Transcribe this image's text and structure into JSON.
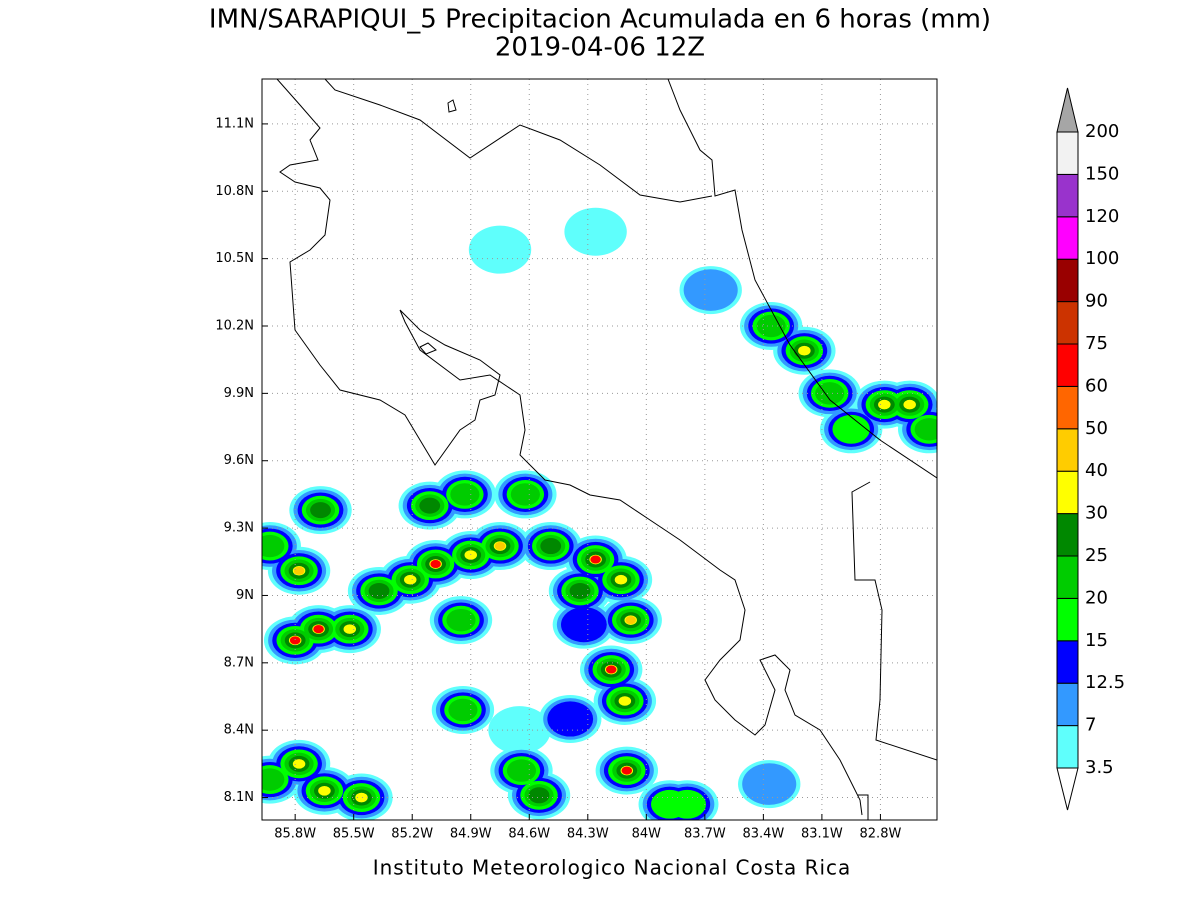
{
  "chart_data": {
    "type": "contour-map",
    "title": "IMN/SARAPIQUI_5 Precipitacion Acumulada en 6 horas (mm)",
    "subtitle": "2019-04-06 12Z",
    "footer": "Instituto Meteorologico Nacional Costa Rica",
    "xlim": [
      -85.97,
      -82.51
    ],
    "ylim": [
      8.0,
      11.3
    ],
    "xticks": [
      {
        "value": -85.8,
        "label": "85.8W"
      },
      {
        "value": -85.5,
        "label": "85.5W"
      },
      {
        "value": -85.2,
        "label": "85.2W"
      },
      {
        "value": -84.9,
        "label": "84.9W"
      },
      {
        "value": -84.6,
        "label": "84.6W"
      },
      {
        "value": -84.3,
        "label": "84.3W"
      },
      {
        "value": -84.0,
        "label": "84W"
      },
      {
        "value": -83.7,
        "label": "83.7W"
      },
      {
        "value": -83.4,
        "label": "83.4W"
      },
      {
        "value": -83.1,
        "label": "83.1W"
      },
      {
        "value": -82.8,
        "label": "82.8W"
      }
    ],
    "yticks": [
      {
        "value": 8.1,
        "label": "8.1N"
      },
      {
        "value": 8.4,
        "label": "8.4N"
      },
      {
        "value": 8.7,
        "label": "8.7N"
      },
      {
        "value": 9.0,
        "label": "9N"
      },
      {
        "value": 9.3,
        "label": "9.3N"
      },
      {
        "value": 9.6,
        "label": "9.6N"
      },
      {
        "value": 9.9,
        "label": "9.9N"
      },
      {
        "value": 10.2,
        "label": "10.2N"
      },
      {
        "value": 10.5,
        "label": "10.5N"
      },
      {
        "value": 10.8,
        "label": "10.8N"
      },
      {
        "value": 11.1,
        "label": "11.1N"
      }
    ],
    "grid": true,
    "levels": [
      3.5,
      7,
      12.5,
      15,
      20,
      25,
      30,
      40,
      50,
      60,
      75,
      90,
      100,
      120,
      150,
      200
    ],
    "colors": [
      "#5ffffc",
      "#3399ff",
      "#0000ff",
      "#00ff00",
      "#00cc00",
      "#008800",
      "#ffff00",
      "#ffcc00",
      "#ff6600",
      "#ff0000",
      "#cc3300",
      "#990000",
      "#ff00ff",
      "#9933cc",
      "#f2f2f2"
    ],
    "under_color": "#ffffff",
    "over_color": "#a6a6a6",
    "points": [
      {
        "lon": -84.26,
        "lat": 10.62,
        "value": 5
      },
      {
        "lon": -84.75,
        "lat": 10.54,
        "value": 5
      },
      {
        "lon": -83.67,
        "lat": 10.36,
        "value": 10
      },
      {
        "lon": -84.65,
        "lat": 8.4,
        "value": 6
      },
      {
        "lon": -84.39,
        "lat": 8.45,
        "value": 13
      },
      {
        "lon": -83.37,
        "lat": 8.16,
        "value": 12
      },
      {
        "lon": -84.32,
        "lat": 8.87,
        "value": 14
      },
      {
        "lon": -83.88,
        "lat": 8.07,
        "value": 18
      },
      {
        "lon": -83.79,
        "lat": 8.07,
        "value": 18
      },
      {
        "lon": -82.95,
        "lat": 9.74,
        "value": 18
      },
      {
        "lon": -83.06,
        "lat": 9.9,
        "value": 20
      },
      {
        "lon": -84.95,
        "lat": 8.89,
        "value": 20
      },
      {
        "lon": -85.11,
        "lat": 9.4,
        "value": 25
      },
      {
        "lon": -84.93,
        "lat": 9.45,
        "value": 22
      },
      {
        "lon": -84.62,
        "lat": 9.45,
        "value": 22
      },
      {
        "lon": -85.67,
        "lat": 9.38,
        "value": 25
      },
      {
        "lon": -84.49,
        "lat": 9.22,
        "value": 25
      },
      {
        "lon": -84.34,
        "lat": 9.02,
        "value": 25
      },
      {
        "lon": -84.94,
        "lat": 8.49,
        "value": 22
      },
      {
        "lon": -84.64,
        "lat": 8.22,
        "value": 22
      },
      {
        "lon": -84.55,
        "lat": 8.11,
        "value": 25
      },
      {
        "lon": -85.93,
        "lat": 8.18,
        "value": 22
      },
      {
        "lon": -85.93,
        "lat": 9.22,
        "value": 22
      },
      {
        "lon": -83.36,
        "lat": 10.2,
        "value": 22
      },
      {
        "lon": -82.55,
        "lat": 9.74,
        "value": 22
      },
      {
        "lon": -85.37,
        "lat": 9.02,
        "value": 25
      },
      {
        "lon": -85.21,
        "lat": 9.07,
        "value": 30
      },
      {
        "lon": -85.46,
        "lat": 8.1,
        "value": 30
      },
      {
        "lon": -82.65,
        "lat": 9.85,
        "value": 30
      },
      {
        "lon": -82.78,
        "lat": 9.85,
        "value": 32
      },
      {
        "lon": -85.52,
        "lat": 8.85,
        "value": 35
      },
      {
        "lon": -84.9,
        "lat": 9.18,
        "value": 35
      },
      {
        "lon": -84.13,
        "lat": 9.07,
        "value": 35
      },
      {
        "lon": -84.11,
        "lat": 8.53,
        "value": 35
      },
      {
        "lon": -85.78,
        "lat": 8.25,
        "value": 35
      },
      {
        "lon": -85.65,
        "lat": 8.13,
        "value": 35
      },
      {
        "lon": -83.19,
        "lat": 10.09,
        "value": 35
      },
      {
        "lon": -84.08,
        "lat": 8.89,
        "value": 40
      },
      {
        "lon": -85.78,
        "lat": 9.11,
        "value": 45
      },
      {
        "lon": -84.75,
        "lat": 9.22,
        "value": 45
      },
      {
        "lon": -85.08,
        "lat": 9.14,
        "value": 60
      },
      {
        "lon": -84.26,
        "lat": 9.16,
        "value": 60
      },
      {
        "lon": -85.8,
        "lat": 8.8,
        "value": 65
      },
      {
        "lon": -84.18,
        "lat": 8.67,
        "value": 65
      },
      {
        "lon": -85.68,
        "lat": 8.85,
        "value": 70
      },
      {
        "lon": -84.1,
        "lat": 8.22,
        "value": 70
      }
    ]
  }
}
